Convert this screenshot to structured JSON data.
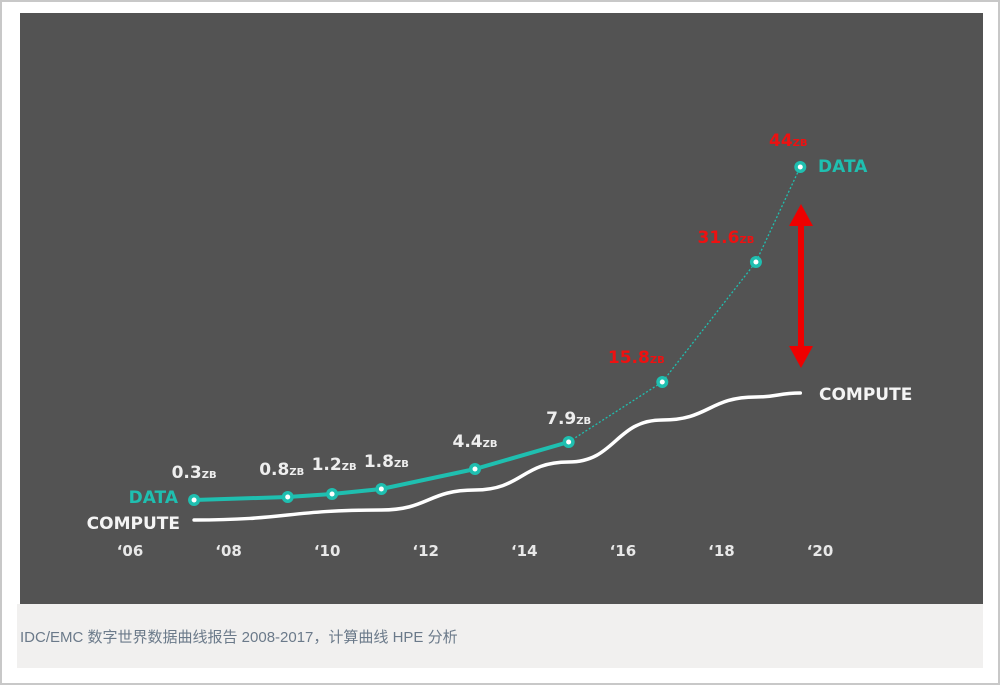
{
  "chart_data": {
    "type": "line",
    "title": "",
    "xlabel": "",
    "ylabel": "",
    "x_ticks": [
      "‘06",
      "‘08",
      "‘10",
      "‘12",
      "‘14",
      "‘16",
      "‘18",
      "‘20"
    ],
    "x_range": [
      2006,
      2020
    ],
    "unit": "ZB",
    "series": [
      {
        "name": "DATA",
        "color": "#1fbfb0",
        "points": [
          {
            "x": 2007.3,
            "value": 0.3,
            "label": "0.3",
            "color": "#eeeeee"
          },
          {
            "x": 2009.2,
            "value": 0.8,
            "label": "0.8",
            "color": "#eeeeee"
          },
          {
            "x": 2010.1,
            "value": 1.2,
            "label": "1.2",
            "color": "#eeeeee"
          },
          {
            "x": 2011.1,
            "value": 1.8,
            "label": "1.8",
            "color": "#eeeeee"
          },
          {
            "x": 2013.0,
            "value": 4.4,
            "label": "4.4",
            "color": "#eeeeee"
          },
          {
            "x": 2014.9,
            "value": 7.9,
            "label": "7.9",
            "color": "#eeeeee"
          },
          {
            "x": 2016.8,
            "value": 15.8,
            "label": "15.8",
            "color": "#ee1111"
          },
          {
            "x": 2018.7,
            "value": 31.6,
            "label": "31.6",
            "color": "#ee1111"
          },
          {
            "x": 2019.6,
            "value": 44,
            "label": "44",
            "color": "#ee1111"
          }
        ],
        "solid_until": 2014.9,
        "projected_after": 2014.9
      },
      {
        "name": "COMPUTE",
        "color": "#ffffff",
        "points": [
          {
            "x": 2007.3
          },
          {
            "x": 2011.1
          },
          {
            "x": 2013.0
          },
          {
            "x": 2014.9
          },
          {
            "x": 2016.8
          },
          {
            "x": 2018.7
          },
          {
            "x": 2019.6
          }
        ]
      }
    ],
    "annotations": [
      {
        "type": "double-arrow",
        "between": [
          "DATA",
          "COMPUTE"
        ],
        "at_x": 2019.6,
        "color": "#ee0000"
      }
    ],
    "grid": false
  },
  "labels": {
    "data": "DATA",
    "compute": "COMPUTE"
  },
  "caption": "IDC/EMC 数字世界数据曲线报告 2008-2017，计算曲线 HPE 分析"
}
